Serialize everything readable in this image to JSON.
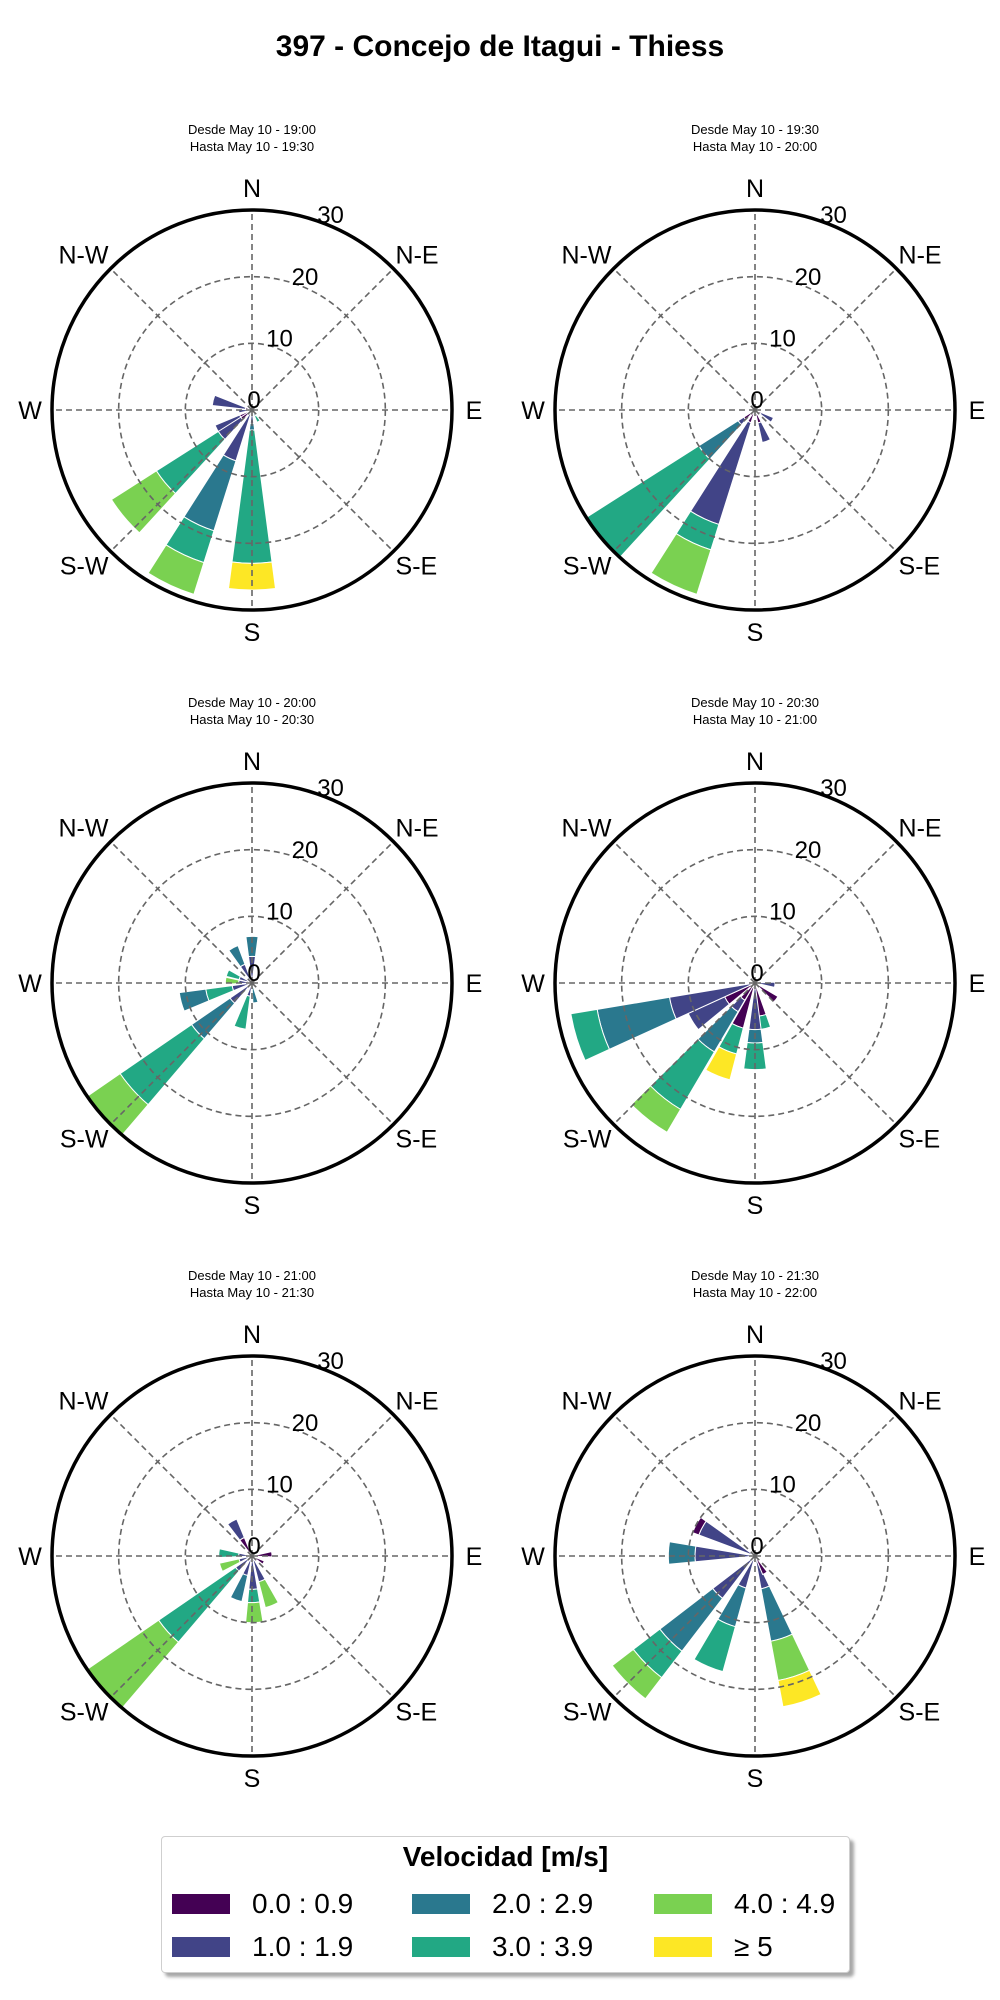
{
  "title": "397 - Concejo de Itagui - Thiess",
  "directions": [
    "N",
    "N-E",
    "E",
    "S-E",
    "S",
    "S-W",
    "W",
    "N-W"
  ],
  "radial_ticks": [
    0,
    10,
    20,
    30
  ],
  "legend": {
    "title": "Velocidad [m/s]",
    "items": [
      {
        "label": "0.0 : 0.9",
        "color": "#440154"
      },
      {
        "label": "1.0 : 1.9",
        "color": "#414487"
      },
      {
        "label": "2.0 : 2.9",
        "color": "#2a788e"
      },
      {
        "label": "3.0 : 3.9",
        "color": "#22a884"
      },
      {
        "label": "4.0 : 4.9",
        "color": "#7ad151"
      },
      {
        "label": "≥  5",
        "color": "#fde725"
      }
    ]
  },
  "chart_data": [
    {
      "type": "windrose",
      "subtitle_line1": "Desde May 10 - 19:00",
      "subtitle_line2": "Hasta May 10 - 19:30",
      "rmax": 30,
      "bins": [
        {
          "direction_deg": 284,
          "segments": [
            [
              0,
              1
            ],
            [
              1,
              6
            ]
          ]
        },
        {
          "direction_deg": 265,
          "segments": [
            [
              1,
              2
            ]
          ]
        },
        {
          "direction_deg": 240,
          "segments": [
            [
              0,
              2
            ],
            [
              1,
              6
            ]
          ]
        },
        {
          "direction_deg": 230,
          "segments": [
            [
              0,
              2
            ],
            [
              1,
              6
            ],
            [
              3,
              17
            ],
            [
              4,
              25
            ]
          ]
        },
        {
          "direction_deg": 205,
          "segments": [
            [
              1,
              8
            ],
            [
              2,
              19
            ],
            [
              3,
              24
            ],
            [
              4,
              29
            ]
          ]
        },
        {
          "direction_deg": 180,
          "segments": [
            [
              1,
              2
            ],
            [
              2,
              3
            ],
            [
              3,
              23
            ],
            [
              5,
              27
            ]
          ]
        },
        {
          "direction_deg": 150,
          "segments": [
            [
              2,
              1
            ],
            [
              3,
              2
            ]
          ]
        }
      ]
    },
    {
      "type": "windrose",
      "subtitle_line1": "Desde May 10 - 19:30",
      "subtitle_line2": "Hasta May 10 - 20:00",
      "rmax": 30,
      "bins": [
        {
          "direction_deg": 120,
          "segments": [
            [
              0,
              1
            ],
            [
              1,
              3
            ]
          ]
        },
        {
          "direction_deg": 160,
          "segments": [
            [
              0,
              2
            ],
            [
              1,
              5
            ]
          ]
        },
        {
          "direction_deg": 205,
          "segments": [
            [
              0,
              2
            ],
            [
              1,
              18
            ],
            [
              3,
              22
            ],
            [
              4,
              29
            ]
          ]
        },
        {
          "direction_deg": 230,
          "segments": [
            [
              0,
              2
            ],
            [
              1,
              3
            ],
            [
              2,
              10
            ],
            [
              3,
              30
            ]
          ]
        }
      ]
    },
    {
      "type": "windrose",
      "subtitle_line1": "Desde May 10 - 20:00",
      "subtitle_line2": "Hasta May 10 - 20:30",
      "rmax": 30,
      "bins": [
        {
          "direction_deg": 0,
          "segments": [
            [
              1,
              4
            ],
            [
              2,
              7
            ]
          ]
        },
        {
          "direction_deg": 332,
          "segments": [
            [
              1,
              3
            ],
            [
              2,
              6
            ]
          ]
        },
        {
          "direction_deg": 292,
          "segments": [
            [
              1,
              2
            ],
            [
              3,
              4
            ]
          ]
        },
        {
          "direction_deg": 275,
          "segments": [
            [
              1,
              2
            ],
            [
              4,
              4
            ]
          ]
        },
        {
          "direction_deg": 255,
          "segments": [
            [
              1,
              3
            ],
            [
              3,
              7
            ],
            [
              2,
              11
            ]
          ]
        },
        {
          "direction_deg": 228,
          "segments": [
            [
              1,
              4
            ],
            [
              2,
              11
            ],
            [
              3,
              24
            ],
            [
              4,
              30
            ]
          ]
        },
        {
          "direction_deg": 195,
          "segments": [
            [
              1,
              2
            ],
            [
              3,
              7
            ]
          ]
        },
        {
          "direction_deg": 170,
          "segments": [
            [
              2,
              3
            ]
          ]
        }
      ]
    },
    {
      "type": "windrose",
      "subtitle_line1": "Desde May 10 - 20:30",
      "subtitle_line2": "Hasta May 10 - 21:00",
      "rmax": 30,
      "bins": [
        {
          "direction_deg": 95,
          "segments": [
            [
              1,
              3
            ]
          ]
        },
        {
          "direction_deg": 128,
          "segments": [
            [
              0,
              4
            ]
          ]
        },
        {
          "direction_deg": 168,
          "segments": [
            [
              0,
              5
            ],
            [
              3,
              7
            ]
          ]
        },
        {
          "direction_deg": 180,
          "segments": [
            [
              1,
              7
            ],
            [
              2,
              9
            ],
            [
              3,
              13
            ]
          ]
        },
        {
          "direction_deg": 202,
          "segments": [
            [
              0,
              7
            ],
            [
              3,
              11
            ],
            [
              5,
              15
            ]
          ]
        },
        {
          "direction_deg": 218,
          "segments": [
            [
              0,
              3
            ],
            [
              1,
              5
            ],
            [
              2,
              12
            ],
            [
              3,
              22
            ],
            [
              4,
              26
            ]
          ]
        },
        {
          "direction_deg": 238,
          "segments": [
            [
              0,
              5
            ],
            [
              1,
              11
            ]
          ]
        },
        {
          "direction_deg": 253,
          "segments": [
            [
              1,
              13
            ],
            [
              2,
              24
            ],
            [
              3,
              28
            ]
          ]
        }
      ]
    },
    {
      "type": "windrose",
      "subtitle_line1": "Desde May 10 - 21:00",
      "subtitle_line2": "Hasta May 10 - 21:30",
      "rmax": 30,
      "bins": [
        {
          "direction_deg": 330,
          "segments": [
            [
              0,
              3
            ],
            [
              1,
              6
            ]
          ]
        },
        {
          "direction_deg": 275,
          "segments": [
            [
              1,
              2
            ],
            [
              3,
              5
            ]
          ]
        },
        {
          "direction_deg": 250,
          "segments": [
            [
              1,
              2
            ],
            [
              4,
              5
            ]
          ]
        },
        {
          "direction_deg": 228,
          "segments": [
            [
              1,
              3
            ],
            [
              3,
              17
            ],
            [
              4,
              30
            ]
          ]
        },
        {
          "direction_deg": 200,
          "segments": [
            [
              1,
              3
            ],
            [
              2,
              7
            ]
          ]
        },
        {
          "direction_deg": 178,
          "segments": [
            [
              1,
              5
            ],
            [
              3,
              7
            ],
            [
              4,
              10
            ]
          ]
        },
        {
          "direction_deg": 158,
          "segments": [
            [
              1,
              4
            ],
            [
              4,
              8
            ]
          ]
        },
        {
          "direction_deg": 85,
          "segments": [
            [
              0,
              3
            ]
          ]
        },
        {
          "direction_deg": 120,
          "segments": [
            [
              0,
              2
            ]
          ]
        }
      ]
    },
    {
      "type": "windrose",
      "subtitle_line1": "Desde May 10 - 21:30",
      "subtitle_line2": "Hasta May 10 - 22:00",
      "rmax": 30,
      "bins": [
        {
          "direction_deg": 298,
          "segments": [
            [
              1,
              9
            ],
            [
              0,
              10
            ]
          ]
        },
        {
          "direction_deg": 272,
          "segments": [
            [
              1,
              9
            ],
            [
              2,
              13
            ]
          ]
        },
        {
          "direction_deg": 225,
          "segments": [
            [
              1,
              8
            ],
            [
              2,
              18
            ],
            [
              3,
              23
            ],
            [
              4,
              27
            ]
          ]
        },
        {
          "direction_deg": 203,
          "segments": [
            [
              1,
              5
            ],
            [
              2,
              11
            ],
            [
              3,
              18
            ]
          ]
        },
        {
          "direction_deg": 162,
          "segments": [
            [
              1,
              5
            ],
            [
              2,
              13
            ],
            [
              4,
              19
            ],
            [
              5,
              23
            ]
          ]
        },
        {
          "direction_deg": 150,
          "segments": [
            [
              0,
              3
            ]
          ]
        }
      ]
    }
  ]
}
